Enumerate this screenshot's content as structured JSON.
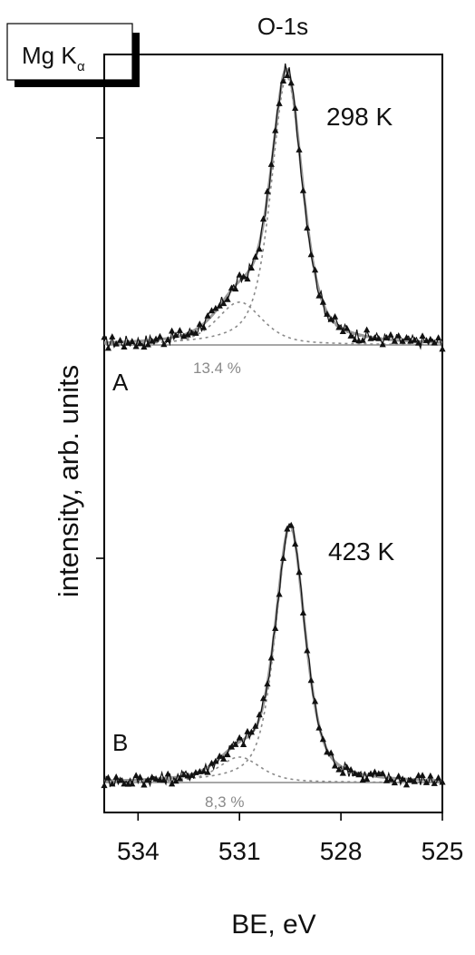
{
  "chart_data": {
    "type": "line",
    "title": "O-1s",
    "source_badge": {
      "main": "Mg K",
      "subscript": "α"
    },
    "xlabel": "BE, eV",
    "ylabel": "intensity, arb. units",
    "xlim": [
      535,
      525
    ],
    "x_reversed": true,
    "xticks": [
      534,
      531,
      528,
      525
    ],
    "grid": false,
    "panels": [
      {
        "id": "A",
        "label": "A",
        "temperature": "298 K",
        "percent_label": "13.4 %",
        "baseline": 0,
        "main_peak": {
          "center": 529.6,
          "height": 100,
          "width": 0.55
        },
        "minor_peak": {
          "center": 531.0,
          "height": 16,
          "width": 0.8
        },
        "x_min": 535,
        "x_max": 525
      },
      {
        "id": "B",
        "label": "B",
        "temperature": "423 K",
        "percent_label": "8,3 %",
        "baseline": 0,
        "main_peak": {
          "center": 529.5,
          "height": 100,
          "width": 0.52
        },
        "minor_peak": {
          "center": 531.0,
          "height": 10,
          "width": 0.75
        },
        "x_min": 535,
        "x_max": 525
      }
    ]
  },
  "colors": {
    "data": "#111111",
    "fit": "#9a9a9a",
    "component": "#8a8a8a",
    "frame": "#000000"
  }
}
